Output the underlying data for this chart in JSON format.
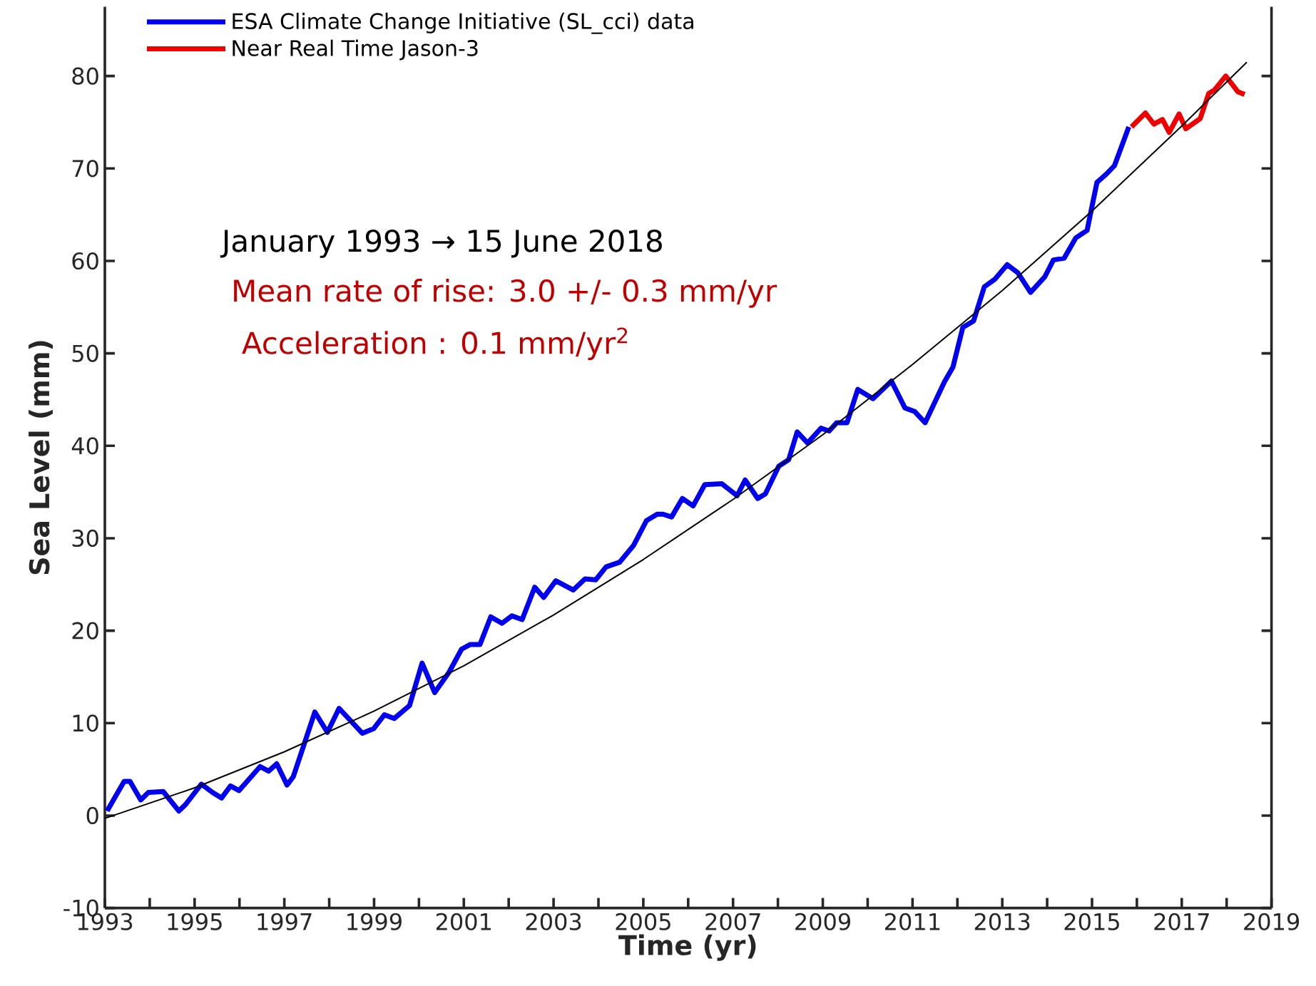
{
  "chart_data": {
    "type": "line",
    "xlabel": "Time (yr)",
    "ylabel": "Sea Level (mm)",
    "series": [
      {
        "name": "ESA Climate Change Initiative (SL_cci) data",
        "color": "#0000ee",
        "x": [
          1993.05,
          1993.43,
          1993.56,
          1993.8,
          1993.97,
          1994.3,
          1994.65,
          1994.8,
          1995.15,
          1995.4,
          1995.6,
          1995.8,
          1995.99,
          1996.46,
          1996.65,
          1996.83,
          1997.06,
          1997.2,
          1997.68,
          1997.96,
          1998.22,
          1998.74,
          1998.99,
          1999.23,
          1999.45,
          1999.79,
          2000.07,
          2000.35,
          2000.67,
          2000.95,
          2001.14,
          2001.36,
          2001.6,
          2001.85,
          2002.07,
          2002.3,
          2002.58,
          2002.78,
          2003.05,
          2003.44,
          2003.7,
          2003.94,
          2004.17,
          2004.47,
          2004.78,
          2005.07,
          2005.31,
          2005.44,
          2005.63,
          2005.87,
          2006.11,
          2006.37,
          2006.75,
          2007.09,
          2007.27,
          2007.55,
          2007.72,
          2008.02,
          2008.24,
          2008.43,
          2008.66,
          2008.96,
          2009.14,
          2009.31,
          2009.54,
          2009.78,
          2010.12,
          2010.53,
          2010.83,
          2011.05,
          2011.28,
          2011.71,
          2011.9,
          2012.12,
          2012.36,
          2012.6,
          2012.83,
          2013.11,
          2013.35,
          2013.63,
          2013.95,
          2014.14,
          2014.38,
          2014.64,
          2014.89,
          2015.11,
          2015.32,
          2015.5,
          2015.82
        ],
        "values": [
          0.5,
          3.7,
          3.7,
          1.7,
          2.5,
          2.6,
          0.5,
          1.2,
          3.4,
          2.5,
          1.9,
          3.2,
          2.7,
          5.3,
          4.8,
          5.6,
          3.3,
          4.2,
          11.2,
          9,
          11.6,
          8.9,
          9.4,
          10.9,
          10.5,
          11.9,
          16.5,
          13.3,
          15.5,
          18,
          18.5,
          18.5,
          21.5,
          20.8,
          21.6,
          21.2,
          24.7,
          23.6,
          25.4,
          24.4,
          25.6,
          25.5,
          26.9,
          27.4,
          29.2,
          31.9,
          32.6,
          32.6,
          32.3,
          34.3,
          33.5,
          35.8,
          35.9,
          34.6,
          36.3,
          34.3,
          34.8,
          37.8,
          38.5,
          41.5,
          40.3,
          41.9,
          41.6,
          42.5,
          42.5,
          46.1,
          45.1,
          47,
          44.1,
          43.7,
          42.5,
          46.9,
          48.5,
          52.8,
          53.5,
          57.2,
          58,
          59.6,
          58.7,
          56.6,
          58.3,
          60.1,
          60.3,
          62.5,
          63.3,
          68.5,
          69.4,
          70.3,
          74.5
        ]
      },
      {
        "name": "Near Real Time Jason-3",
        "color": "#ee0000",
        "x": [
          2015.88,
          2016.19,
          2016.38,
          2016.57,
          2016.72,
          2016.94,
          2017.09,
          2017.41,
          2017.6,
          2017.73,
          2017.98,
          2018.25,
          2018.4
        ],
        "values": [
          74.5,
          76,
          74.8,
          75.3,
          73.9,
          75.9,
          74.3,
          75.4,
          78.1,
          78.5,
          80,
          78.3,
          78
        ]
      },
      {
        "type": "line",
        "color": "#000000",
        "x": [
          1993,
          1995,
          1997,
          1999,
          2001,
          2003,
          2005,
          2007,
          2009,
          2011,
          2013,
          2015,
          2017,
          2018.45
        ],
        "values": [
          -0.3,
          3.0,
          6.9,
          11.3,
          16.2,
          21.7,
          27.7,
          34.2,
          41.2,
          48.8,
          56.8,
          65.4,
          74.6,
          81.5
        ]
      }
    ],
    "xlim": [
      1993,
      2019
    ],
    "xticks": [
      1993,
      {
        "value": 1994,
        "label": null
      },
      1995,
      {
        "value": 1996,
        "label": null
      },
      1997,
      {
        "value": 1998,
        "label": null
      },
      1999,
      {
        "value": 2000,
        "label": null
      },
      2001,
      {
        "value": 2002,
        "label": null
      },
      2003,
      {
        "value": 2004,
        "label": null
      },
      2005,
      {
        "value": 2006,
        "label": null
      },
      2007,
      {
        "value": 2008,
        "label": null
      },
      2009,
      {
        "value": 2010,
        "label": null
      },
      2011,
      {
        "value": 2012,
        "label": null
      },
      2013,
      {
        "value": 2014,
        "label": null
      },
      2015,
      {
        "value": 2016,
        "label": null
      },
      2017,
      {
        "value": 2018,
        "label": null
      },
      2019
    ],
    "ylim": [
      -10,
      87.5
    ],
    "yticks": [
      -10,
      0,
      10,
      20,
      30,
      40,
      50,
      60,
      70,
      80
    ],
    "legend": "top left",
    "annotations": [
      "January 1993 → 15 June 2018",
      "Mean rate of rise: 3.0 +/- 0.3 mm/yr",
      "Acceleration : 0.1 mm/yr$^{2}$"
    ]
  }
}
